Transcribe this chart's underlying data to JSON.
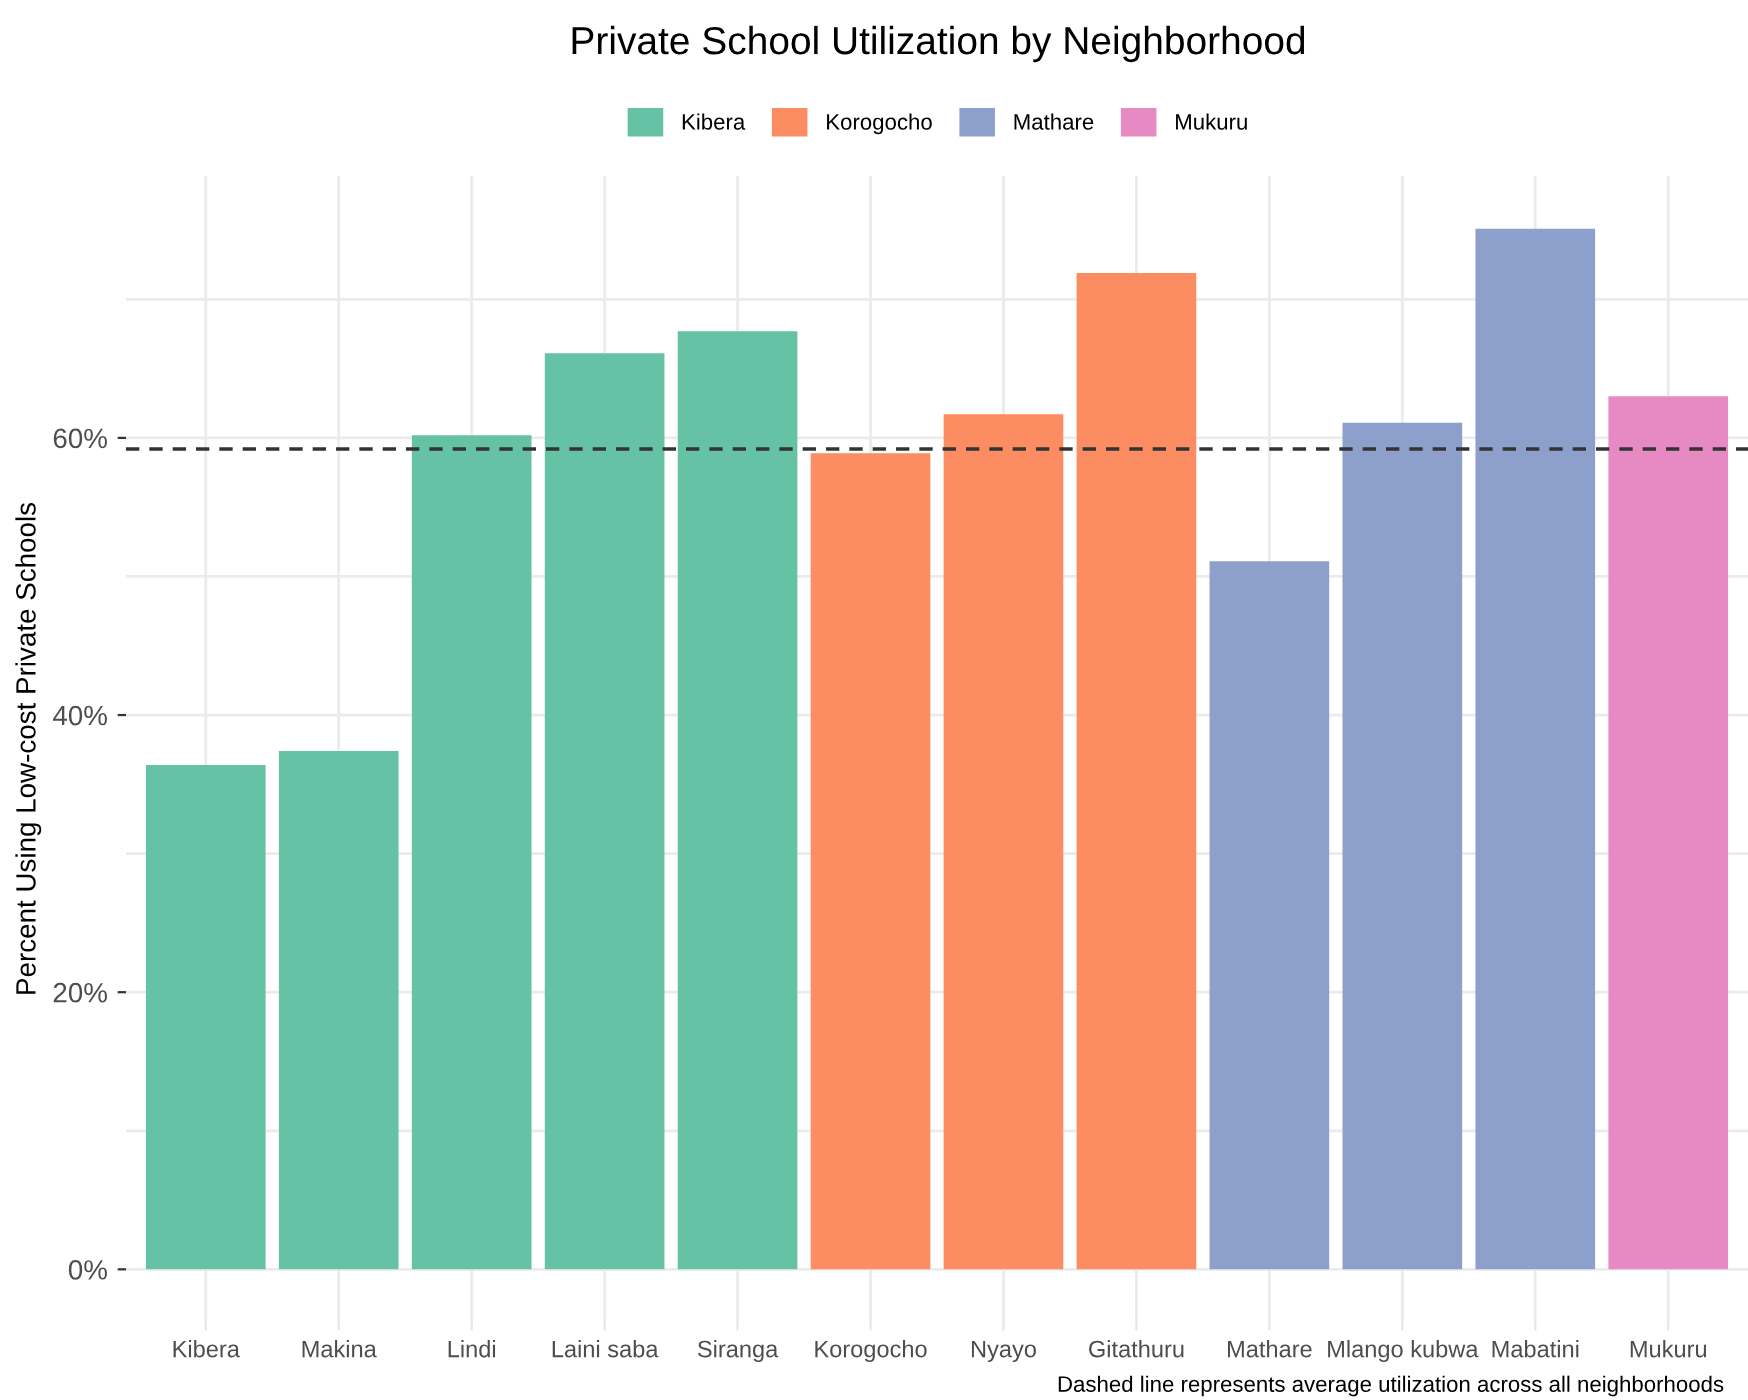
{
  "chart_data": {
    "type": "bar",
    "title": "Private School Utilization by Neighborhood",
    "ylabel": "Percent Using Low-cost Private Schools",
    "categories": [
      "Kibera",
      "Makina",
      "Lindi",
      "Laini saba",
      "Siranga",
      "Korogocho",
      "Nyayo",
      "Gitathuru",
      "Mathare",
      "Mlango kubwa",
      "Mabatini",
      "Mukuru"
    ],
    "series": [
      {
        "name": "Kibera",
        "color": "#66c2a5",
        "values": [
          36.4,
          37.4,
          60.2,
          66.1,
          67.7,
          null,
          null,
          null,
          null,
          null,
          null,
          null
        ]
      },
      {
        "name": "Korogocho",
        "color": "#fc8d62",
        "values": [
          null,
          null,
          null,
          null,
          null,
          58.9,
          61.7,
          71.9,
          null,
          null,
          null,
          null
        ]
      },
      {
        "name": "Mathare",
        "color": "#8da0cb",
        "values": [
          null,
          null,
          null,
          null,
          null,
          null,
          null,
          null,
          51.1,
          61.1,
          75.1,
          null
        ]
      },
      {
        "name": "Mukuru",
        "color": "#e78ac3",
        "values": [
          null,
          null,
          null,
          null,
          null,
          null,
          null,
          null,
          null,
          null,
          null,
          63.0
        ]
      }
    ],
    "ylim": [
      -3.8,
      78.9
    ],
    "yticks": [
      {
        "value": 0,
        "label": "0%"
      },
      {
        "value": 10,
        "label": null
      },
      {
        "value": 20,
        "label": "20%"
      },
      {
        "value": 30,
        "label": null
      },
      {
        "value": 40,
        "label": "40%"
      },
      {
        "value": 50,
        "label": null
      },
      {
        "value": 60,
        "label": "60%"
      },
      {
        "value": 70,
        "label": null
      }
    ],
    "ref_lines": [
      {
        "axis": "y",
        "value": 59.2,
        "label": null,
        "color": "#333333",
        "line_style": "dashed"
      }
    ],
    "annotations": [
      "Dashed line represents average utilization across all neighborhoods"
    ],
    "grid": true,
    "legend": "top"
  }
}
